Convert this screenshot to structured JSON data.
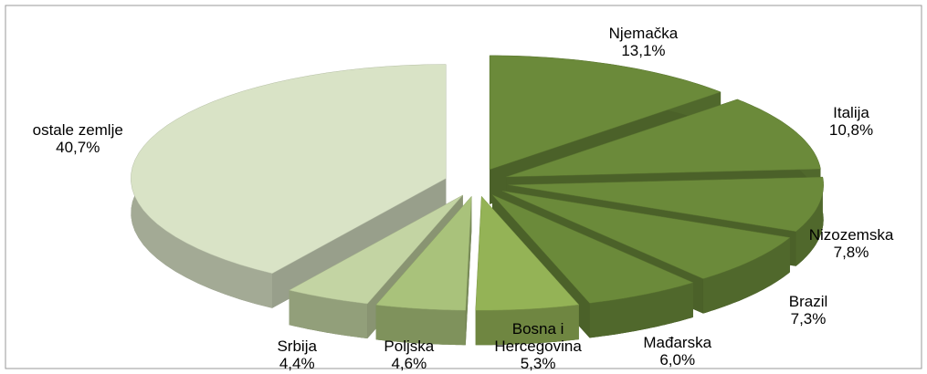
{
  "chart_data": {
    "type": "pie",
    "categories": [
      "Njemačka",
      "Italija",
      "Nizozemska",
      "Brazil",
      "Mađarska",
      "Bosna i Hercegovina",
      "Poljska",
      "Srbija",
      "ostale zemlje"
    ],
    "values": [
      13.1,
      10.8,
      7.8,
      7.3,
      6.0,
      5.3,
      4.6,
      4.4,
      40.7
    ],
    "value_labels": [
      "13,1%",
      "10,8%",
      "7,8%",
      "7,3%",
      "6,0%",
      "5,3%",
      "4,6%",
      "4,4%",
      "40,7%"
    ],
    "colors": [
      "#6b8a3a",
      "#6b8a3a",
      "#6b8a3a",
      "#6b8a3a",
      "#6b8a3a",
      "#94b356",
      "#a9c27b",
      "#c3d4a3",
      "#d9e3c6"
    ]
  }
}
